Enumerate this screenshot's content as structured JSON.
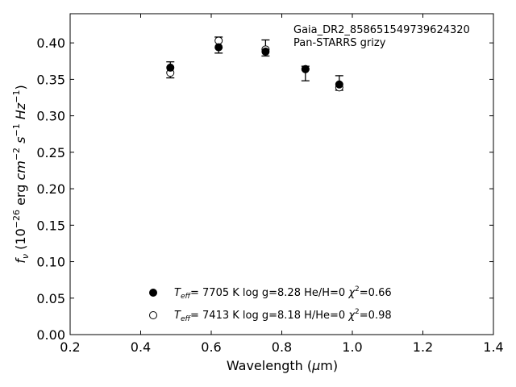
{
  "chart_data": {
    "type": "scatter",
    "title": "",
    "annotations": [
      "Gaia_DR2_858651549739624320",
      "Pan-STARRS grizy"
    ],
    "xlabel": "Wavelength (μm)",
    "ylabel": "f_ν (10^−26 erg cm^−2 s^−1 Hz^−1)",
    "xlim": [
      0.2,
      1.4
    ],
    "ylim": [
      0.0,
      0.44
    ],
    "xticks": [
      0.2,
      0.4,
      0.6,
      0.8,
      1.0,
      1.2,
      1.4
    ],
    "xtick_labels": [
      "0.2",
      "0.4",
      "0.6",
      "0.8",
      "1.0",
      "1.2",
      "1.4"
    ],
    "yticks": [
      0.0,
      0.05,
      0.1,
      0.15,
      0.2,
      0.25,
      0.3,
      0.35,
      0.4
    ],
    "ytick_labels": [
      "0.00",
      "0.05",
      "0.10",
      "0.15",
      "0.20",
      "0.25",
      "0.30",
      "0.35",
      "0.40"
    ],
    "grid": false,
    "observed": {
      "x": [
        0.484,
        0.621,
        0.754,
        0.867,
        0.963
      ],
      "y": [
        0.363,
        0.397,
        0.393,
        0.358,
        0.345
      ],
      "err": [
        0.011,
        0.011,
        0.011,
        0.01,
        0.01
      ]
    },
    "series": [
      {
        "name": "Teff= 7705 K log g=8.28 He/H=0 χ²=0.66",
        "marker": "filled-circle",
        "x": [
          0.484,
          0.621,
          0.754,
          0.867,
          0.963
        ],
        "y": [
          0.366,
          0.394,
          0.388,
          0.364,
          0.343
        ]
      },
      {
        "name": "Teff= 7413 K log g=8.18 H/He=0 χ²=0.98",
        "marker": "open-circle",
        "x": [
          0.484,
          0.621,
          0.754,
          0.867,
          0.963
        ],
        "y": [
          0.359,
          0.403,
          0.391,
          0.364,
          0.339
        ]
      }
    ],
    "legend": {
      "placement": "lower-center",
      "entries": [
        {
          "teff": "7705 K",
          "logg_text": "log g=8.28",
          "comp": "He/H=0",
          "chi2": "=0.66"
        },
        {
          "teff": "7413 K",
          "logg_text": "log g=8.18",
          "comp": "H/He=0",
          "chi2": "=0.98"
        }
      ]
    },
    "colors": {
      "markers": "#000000",
      "axes": "#000000",
      "background": "#ffffff"
    }
  }
}
